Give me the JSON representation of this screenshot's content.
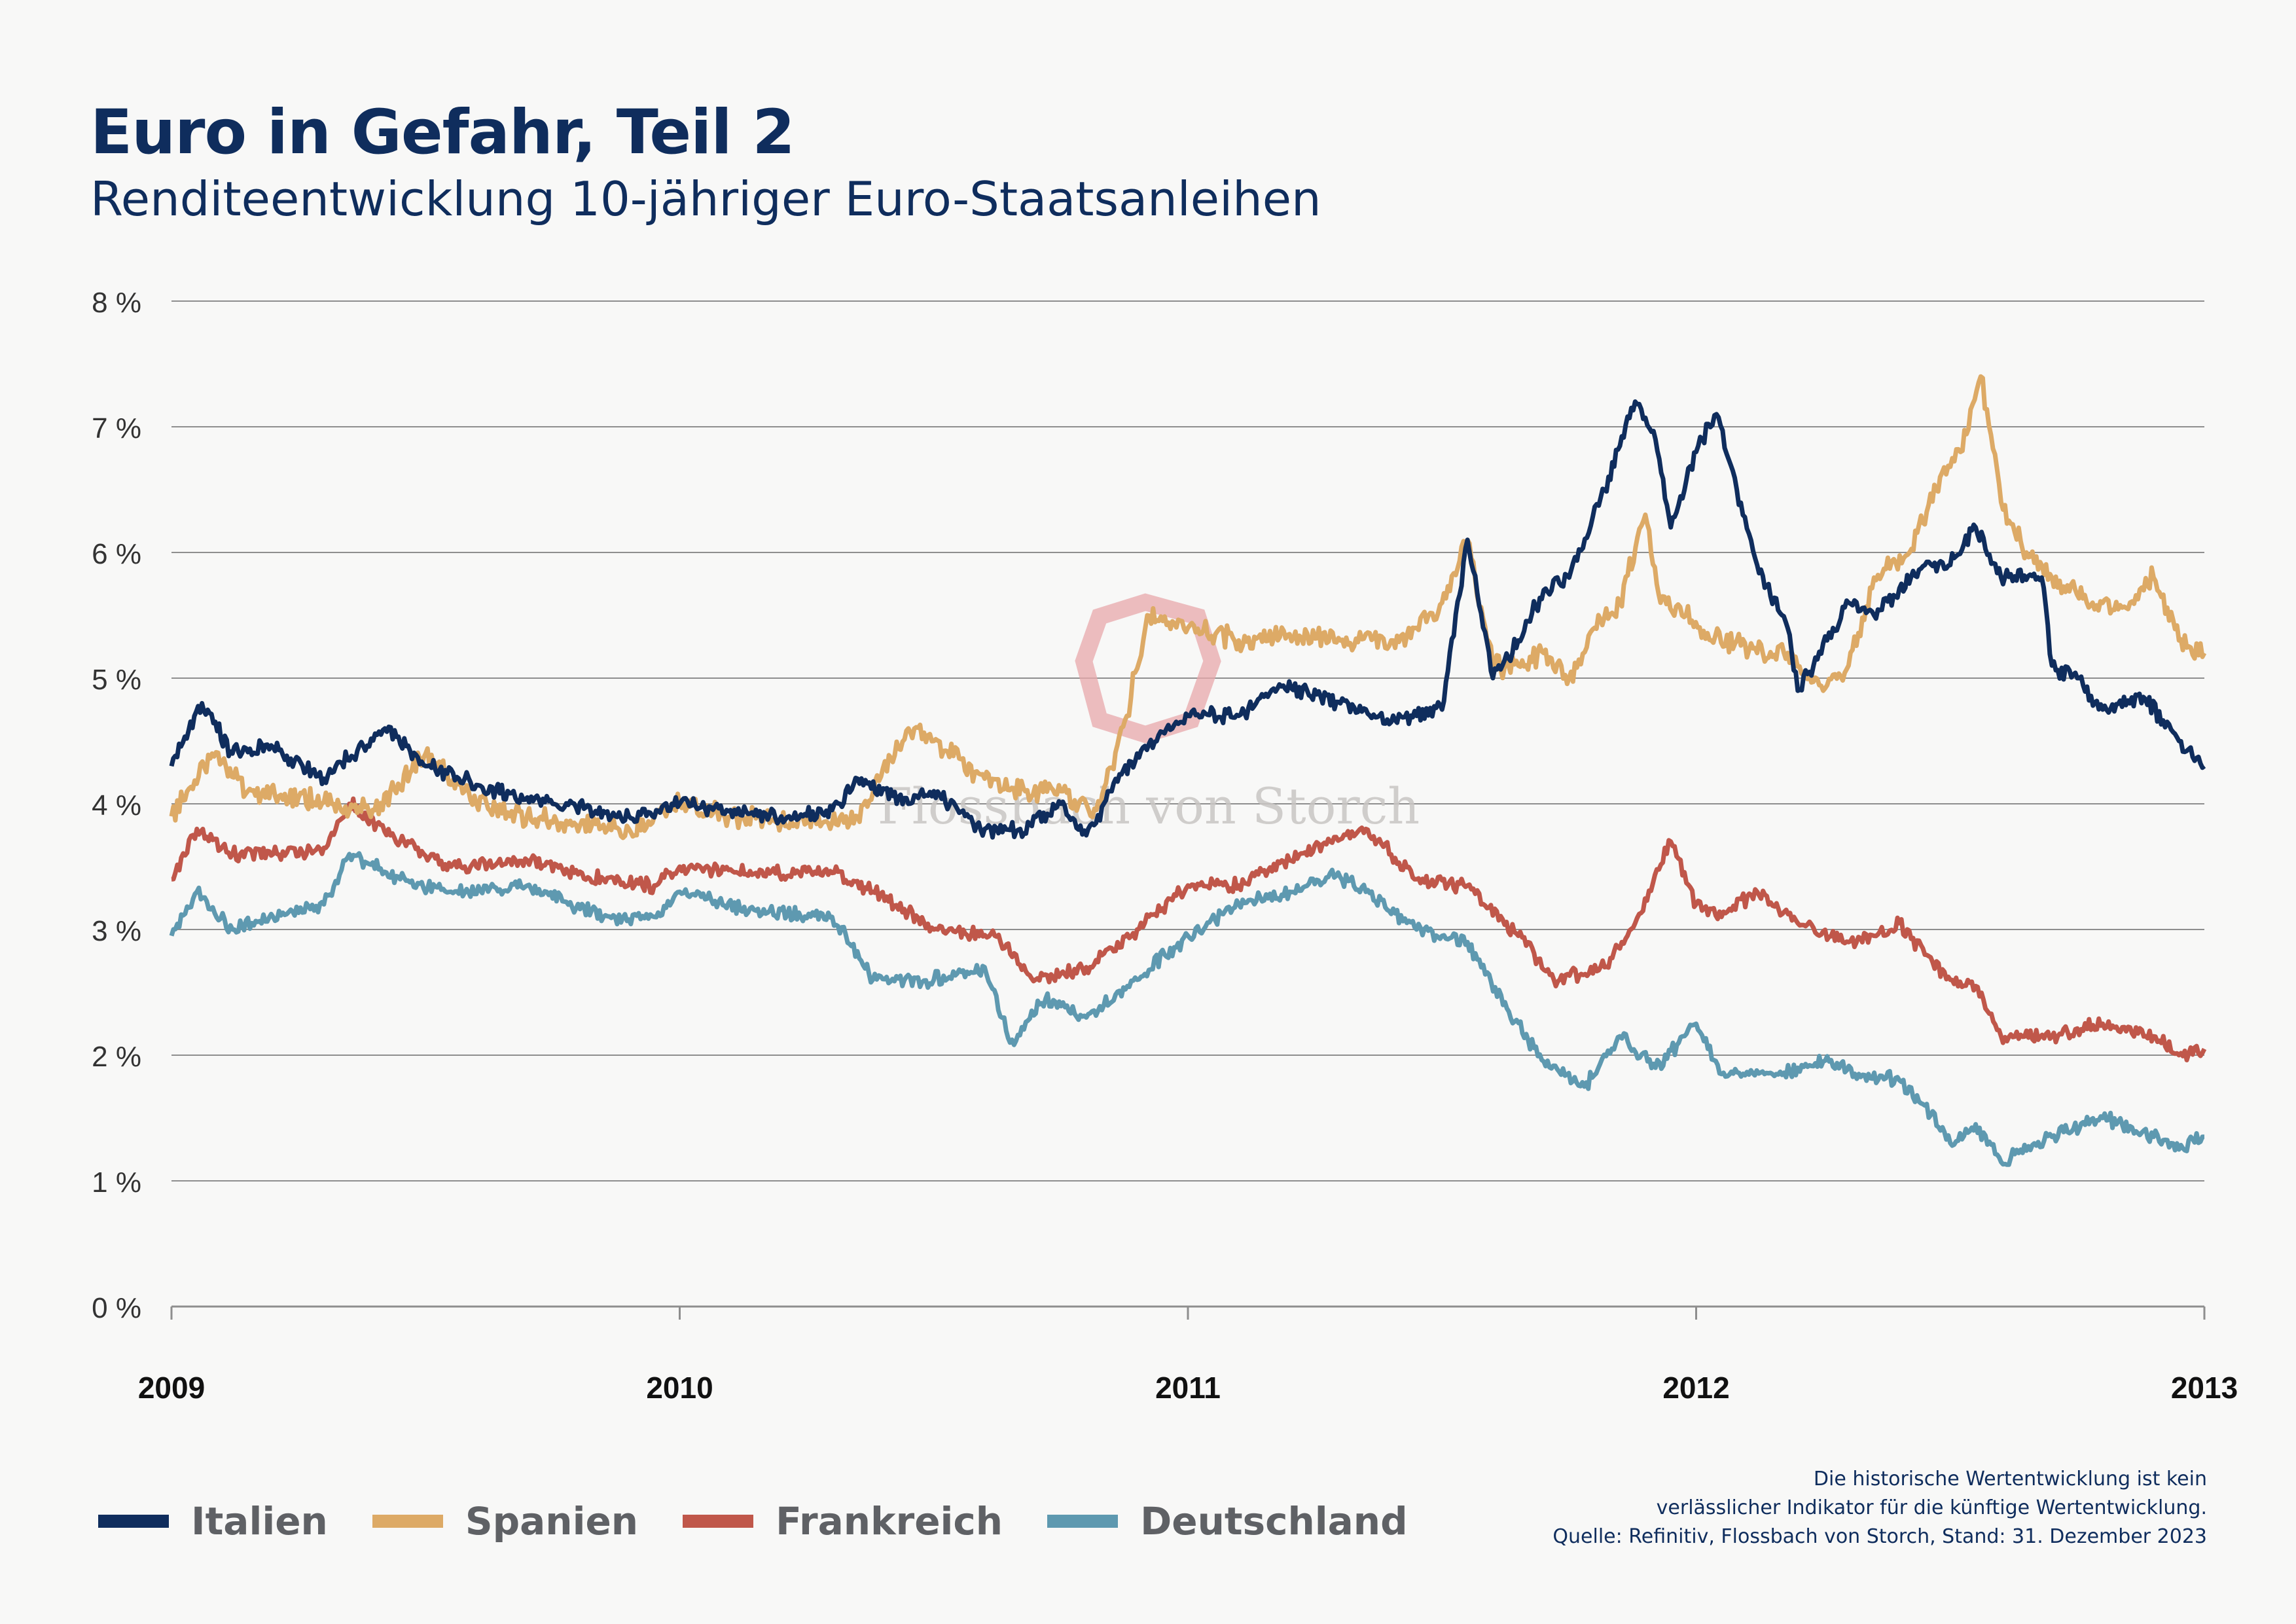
{
  "title": "Euro in Gefahr, Teil 2",
  "subtitle": "Renditeentwicklung 10-jähriger Euro-Staatsanleihen",
  "watermark": "Flossbach von Storch",
  "note": {
    "line1": "Die historische Wertentwicklung ist kein",
    "line2": "verlässlicher Indikator für die künftige Wertentwicklung.",
    "line3": "Quelle: Refinitiv, Flossbach von Storch, Stand: 31. Dezember 2023"
  },
  "chart_data": {
    "type": "line",
    "title": "Euro in Gefahr, Teil 2",
    "subtitle": "Renditeentwicklung 10-jähriger Euro-Staatsanleihen",
    "xlabel": "",
    "ylabel": "",
    "xlim": [
      2009,
      2013
    ],
    "ylim": [
      0,
      8
    ],
    "grid": true,
    "legend_position": "bottom-left",
    "x_ticks": [
      "2009",
      "2010",
      "2011",
      "2012",
      "2013"
    ],
    "y_ticks": [
      "0 %",
      "1 %",
      "2 %",
      "3 %",
      "4 %",
      "5 %",
      "6 %",
      "7 %",
      "8 %"
    ],
    "series": [
      {
        "name": "Italien",
        "color": "#0f2d5d",
        "x": [
          2009.0,
          2009.06,
          2009.12,
          2009.2,
          2009.3,
          2009.42,
          2009.5,
          2009.6,
          2009.75,
          2009.9,
          2010.0,
          2010.1,
          2010.2,
          2010.3,
          2010.35,
          2010.45,
          2010.5,
          2010.6,
          2010.67,
          2010.75,
          2010.8,
          2010.85,
          2010.9,
          2011.0,
          2011.1,
          2011.18,
          2011.3,
          2011.4,
          2011.45,
          2011.5,
          2011.55,
          2011.6,
          2011.65,
          2011.7,
          2011.75,
          2011.82,
          2011.88,
          2011.92,
          2011.95,
          2012.0,
          2012.04,
          2012.08,
          2012.12,
          2012.18,
          2012.2,
          2012.3,
          2012.35,
          2012.45,
          2012.5,
          2012.55,
          2012.6,
          2012.68,
          2012.7,
          2012.75,
          2012.8,
          2012.88,
          2012.95,
          2013.0
        ],
        "values": [
          4.3,
          4.8,
          4.4,
          4.45,
          4.2,
          4.6,
          4.3,
          4.15,
          4.0,
          3.9,
          4.0,
          3.95,
          3.9,
          3.95,
          4.2,
          4.0,
          4.1,
          3.8,
          3.8,
          4.0,
          3.75,
          4.1,
          4.4,
          4.7,
          4.7,
          4.95,
          4.8,
          4.65,
          4.7,
          4.75,
          6.1,
          5.0,
          5.3,
          5.7,
          5.8,
          6.5,
          7.2,
          6.9,
          6.2,
          6.8,
          7.1,
          6.5,
          5.9,
          5.4,
          4.9,
          5.6,
          5.5,
          5.9,
          5.9,
          6.2,
          5.8,
          5.8,
          5.1,
          5.0,
          4.75,
          4.85,
          4.5,
          4.3
        ]
      },
      {
        "name": "Spanien",
        "color": "#ddaa66",
        "x": [
          2009.0,
          2009.08,
          2009.15,
          2009.25,
          2009.4,
          2009.5,
          2009.6,
          2009.75,
          2009.9,
          2010.0,
          2010.1,
          2010.2,
          2010.3,
          2010.35,
          2010.45,
          2010.5,
          2010.6,
          2010.68,
          2010.75,
          2010.82,
          2010.88,
          2010.92,
          2011.0,
          2011.1,
          2011.2,
          2011.3,
          2011.4,
          2011.45,
          2011.5,
          2011.55,
          2011.6,
          2011.65,
          2011.7,
          2011.75,
          2011.8,
          2011.85,
          2011.9,
          2011.93,
          2011.98,
          2012.03,
          2012.08,
          2012.12,
          2012.18,
          2012.25,
          2012.3,
          2012.35,
          2012.42,
          2012.48,
          2012.52,
          2012.56,
          2012.6,
          2012.65,
          2012.7,
          2012.78,
          2012.85,
          2012.9,
          2012.95,
          2013.0
        ],
        "values": [
          3.9,
          4.4,
          4.1,
          4.05,
          3.95,
          4.4,
          4.0,
          3.85,
          3.8,
          4.0,
          3.9,
          3.85,
          3.85,
          3.9,
          4.6,
          4.5,
          4.2,
          4.1,
          4.1,
          3.95,
          4.7,
          5.5,
          5.4,
          5.3,
          5.35,
          5.3,
          5.3,
          5.4,
          5.6,
          6.1,
          5.1,
          5.1,
          5.2,
          5.0,
          5.4,
          5.6,
          6.3,
          5.6,
          5.5,
          5.3,
          5.3,
          5.2,
          5.2,
          4.9,
          5.1,
          5.8,
          6.0,
          6.6,
          6.8,
          7.4,
          6.4,
          6.0,
          5.8,
          5.6,
          5.55,
          5.8,
          5.3,
          5.2
        ]
      },
      {
        "name": "Frankreich",
        "color": "#c0574a",
        "x": [
          2009.0,
          2009.05,
          2009.12,
          2009.2,
          2009.3,
          2009.35,
          2009.45,
          2009.55,
          2009.7,
          2009.85,
          2009.95,
          2010.0,
          2010.15,
          2010.3,
          2010.38,
          2010.5,
          2010.62,
          2010.7,
          2010.8,
          2010.9,
          2011.0,
          2011.1,
          2011.2,
          2011.28,
          2011.35,
          2011.45,
          2011.55,
          2011.65,
          2011.72,
          2011.82,
          2011.88,
          2011.95,
          2012.0,
          2012.05,
          2012.12,
          2012.2,
          2012.3,
          2012.35,
          2012.4,
          2012.45,
          2012.5,
          2012.55,
          2012.6,
          2012.7,
          2012.8,
          2012.9,
          2012.95,
          2013.0
        ],
        "values": [
          3.4,
          3.8,
          3.6,
          3.6,
          3.65,
          4.0,
          3.7,
          3.5,
          3.55,
          3.4,
          3.35,
          3.5,
          3.45,
          3.45,
          3.3,
          3.0,
          2.95,
          2.6,
          2.7,
          3.0,
          3.35,
          3.35,
          3.55,
          3.7,
          3.8,
          3.4,
          3.35,
          2.95,
          2.6,
          2.7,
          3.05,
          3.7,
          3.2,
          3.1,
          3.3,
          3.05,
          2.9,
          2.95,
          3.05,
          2.8,
          2.6,
          2.55,
          2.15,
          2.15,
          2.25,
          2.15,
          2.0,
          2.05
        ]
      },
      {
        "name": "Deutschland",
        "color": "#5e99b0",
        "x": [
          2009.0,
          2009.05,
          2009.12,
          2009.2,
          2009.3,
          2009.35,
          2009.45,
          2009.55,
          2009.7,
          2009.85,
          2009.95,
          2010.0,
          2010.15,
          2010.3,
          2010.38,
          2010.5,
          2010.6,
          2010.65,
          2010.72,
          2010.8,
          2010.9,
          2011.0,
          2011.1,
          2011.2,
          2011.28,
          2011.35,
          2011.45,
          2011.55,
          2011.62,
          2011.7,
          2011.78,
          2011.85,
          2011.92,
          2012.0,
          2012.05,
          2012.15,
          2012.2,
          2012.25,
          2012.32,
          2012.4,
          2012.45,
          2012.5,
          2012.55,
          2012.6,
          2012.7,
          2012.8,
          2012.9,
          2012.95,
          2013.0
        ],
        "values": [
          2.95,
          3.3,
          3.0,
          3.1,
          3.2,
          3.6,
          3.4,
          3.3,
          3.35,
          3.1,
          3.1,
          3.3,
          3.15,
          3.1,
          2.6,
          2.6,
          2.7,
          2.1,
          2.45,
          2.3,
          2.6,
          2.95,
          3.2,
          3.3,
          3.45,
          3.3,
          3.0,
          2.9,
          2.4,
          1.95,
          1.75,
          2.15,
          1.9,
          2.25,
          1.85,
          1.85,
          1.9,
          1.95,
          1.85,
          1.8,
          1.6,
          1.3,
          1.45,
          1.15,
          1.35,
          1.5,
          1.35,
          1.25,
          1.35
        ]
      }
    ]
  }
}
